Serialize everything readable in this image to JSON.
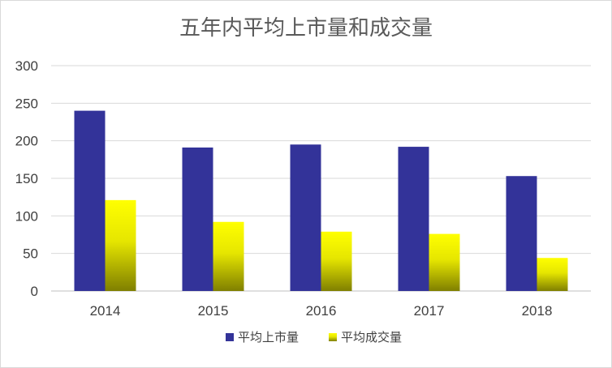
{
  "chart_data": {
    "type": "bar",
    "title": "五年内平均上市量和成交量",
    "categories": [
      "2014",
      "2015",
      "2016",
      "2017",
      "2018"
    ],
    "series": [
      {
        "name": "平均上市量",
        "values": [
          240,
          191,
          195,
          192,
          153
        ],
        "color": "#333399"
      },
      {
        "name": "平均成交量",
        "values": [
          121,
          92,
          79,
          76,
          44
        ],
        "color": "#ffff00",
        "color_dark": "#7f7f00"
      }
    ],
    "yticks": [
      "0",
      "50",
      "100",
      "150",
      "200",
      "250",
      "300"
    ],
    "ylim": [
      0,
      300
    ],
    "grid": true,
    "legend": "bottom"
  }
}
